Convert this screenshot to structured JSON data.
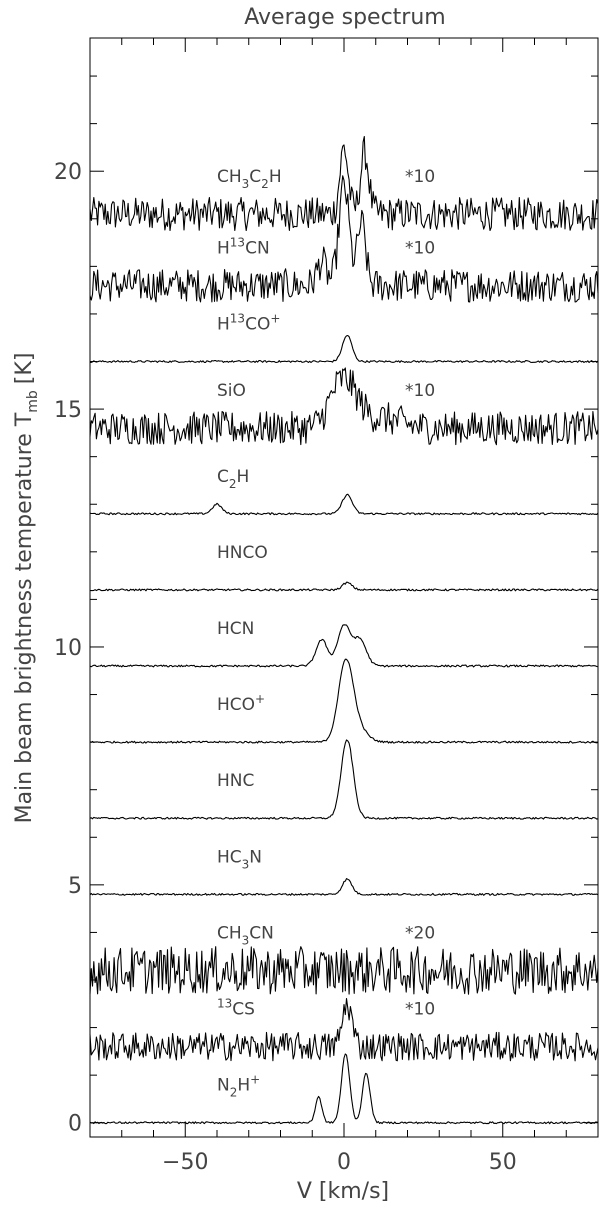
{
  "chart_data": {
    "type": "line",
    "title": "Average spectrum",
    "xlabel": "V [km/s]",
    "ylabel": "Main beam brightness temperature T",
    "ylabel_sub": "mb",
    "ylabel_unit": "[K]",
    "xlim": [
      -80,
      80
    ],
    "ylim": [
      -0.3,
      22.8
    ],
    "xticks": [
      -50,
      0,
      50
    ],
    "xtick_labels": [
      "−50",
      "0",
      "50"
    ],
    "yticks": [
      0,
      5,
      10,
      15,
      20
    ],
    "ytick_labels": [
      "0",
      "5",
      "10",
      "15",
      "20"
    ],
    "grid": false,
    "legend": "none",
    "series": [
      {
        "name": "CH3C2H",
        "label_parts": [
          {
            "t": "CH"
          },
          {
            "t": "3",
            "s": "sub"
          },
          {
            "t": "C"
          },
          {
            "t": "2",
            "s": "sub"
          },
          {
            "t": "H"
          }
        ],
        "scale_label": "*10",
        "baseline": 19.1,
        "noise": 0.35,
        "peaks": [
          [
            0,
            1.4,
            1.3
          ],
          [
            6.5,
            1.3,
            1.3
          ]
        ]
      },
      {
        "name": "H13CN",
        "label_parts": [
          {
            "t": "H"
          },
          {
            "t": "13",
            "s": "sup"
          },
          {
            "t": "CN"
          }
        ],
        "scale_label": "*10",
        "baseline": 17.6,
        "noise": 0.35,
        "peaks": [
          [
            -7,
            0.5,
            1.5
          ],
          [
            0,
            2.1,
            1.6
          ],
          [
            5.5,
            1.3,
            1.3
          ]
        ]
      },
      {
        "name": "H13CO+",
        "label_parts": [
          {
            "t": "H"
          },
          {
            "t": "13",
            "s": "sup"
          },
          {
            "t": "CO"
          },
          {
            "t": "+",
            "s": "sup"
          }
        ],
        "baseline": 16.0,
        "noise": 0.02,
        "peaks": [
          [
            1,
            0.55,
            1.5
          ]
        ]
      },
      {
        "name": "SiO",
        "label_parts": [
          {
            "t": "SiO"
          }
        ],
        "scale_label": "*10",
        "baseline": 14.6,
        "noise": 0.35,
        "peaks": [
          [
            0.5,
            0.9,
            4
          ],
          [
            -3,
            0.2,
            3
          ],
          [
            12,
            0.2,
            6
          ]
        ]
      },
      {
        "name": "C2H",
        "label_parts": [
          {
            "t": "C"
          },
          {
            "t": "2",
            "s": "sub"
          },
          {
            "t": "H"
          }
        ],
        "baseline": 12.8,
        "noise": 0.02,
        "peaks": [
          [
            -40,
            0.2,
            1.5
          ],
          [
            1,
            0.4,
            1.6
          ]
        ]
      },
      {
        "name": "HNCO",
        "label_parts": [
          {
            "t": "HNCO"
          }
        ],
        "baseline": 11.2,
        "noise": 0.02,
        "peaks": [
          [
            1,
            0.15,
            1.5
          ]
        ]
      },
      {
        "name": "HCN",
        "label_parts": [
          {
            "t": "HCN"
          }
        ],
        "baseline": 9.6,
        "noise": 0.02,
        "peaks": [
          [
            -7,
            0.55,
            1.8
          ],
          [
            0,
            0.85,
            2.0
          ],
          [
            5,
            0.55,
            2.0
          ]
        ]
      },
      {
        "name": "HCO+",
        "label_parts": [
          {
            "t": "HCO"
          },
          {
            "t": "+",
            "s": "sup"
          }
        ],
        "baseline": 8.0,
        "noise": 0.02,
        "peaks": [
          [
            0.5,
            1.6,
            2.3
          ],
          [
            4,
            0.3,
            3
          ]
        ]
      },
      {
        "name": "HNC",
        "label_parts": [
          {
            "t": "HNC"
          }
        ],
        "baseline": 6.4,
        "noise": 0.02,
        "peaks": [
          [
            1,
            1.65,
            1.9
          ]
        ]
      },
      {
        "name": "HC3N",
        "label_parts": [
          {
            "t": "HC"
          },
          {
            "t": "3",
            "s": "sub"
          },
          {
            "t": "N"
          }
        ],
        "baseline": 4.8,
        "noise": 0.02,
        "peaks": [
          [
            1,
            0.32,
            1.5
          ]
        ]
      },
      {
        "name": "CH3CN",
        "label_parts": [
          {
            "t": "CH"
          },
          {
            "t": "3",
            "s": "sub"
          },
          {
            "t": "CN"
          }
        ],
        "scale_label": "*20",
        "baseline": 3.2,
        "noise": 0.5,
        "peaks": []
      },
      {
        "name": "13CS",
        "label_parts": [
          {
            "t": "13",
            "s": "sup"
          },
          {
            "t": "CS"
          }
        ],
        "scale_label": "*10",
        "baseline": 1.6,
        "noise": 0.3,
        "peaks": [
          [
            1,
            0.9,
            1.5
          ]
        ]
      },
      {
        "name": "N2H+",
        "label_parts": [
          {
            "t": "N"
          },
          {
            "t": "2",
            "s": "sub"
          },
          {
            "t": "H"
          },
          {
            "t": "+",
            "s": "sup"
          }
        ],
        "baseline": 0.0,
        "noise": 0.02,
        "peaks": [
          [
            -8,
            0.55,
            1.0
          ],
          [
            0.5,
            1.45,
            1.3
          ],
          [
            7,
            1.05,
            1.2
          ]
        ]
      }
    ]
  }
}
